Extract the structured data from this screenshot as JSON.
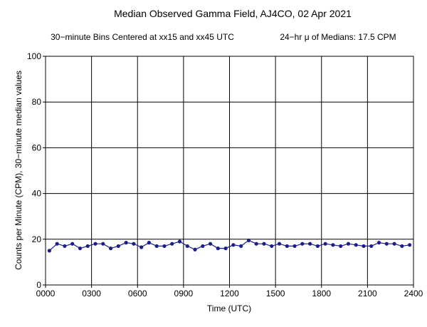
{
  "chart_data": {
    "type": "line",
    "title": "Median Observed Gamma Field, AJ4CO, 02 Apr 2021",
    "subtitle_left": "30−minute Bins Centered at xx15 and xx45 UTC",
    "subtitle_right": "24−hr μ of Medians: 17.5 CPM",
    "xlabel": "Time (UTC)",
    "ylabel": "Counts per Minute (CPM), 30−minute median values",
    "xlim": [
      0,
      24
    ],
    "ylim": [
      0,
      100
    ],
    "x_ticks": [
      0,
      3,
      6,
      9,
      12,
      15,
      18,
      21,
      24
    ],
    "x_tick_labels": [
      "0000",
      "0300",
      "0600",
      "0900",
      "1200",
      "1500",
      "1800",
      "2100",
      "2400"
    ],
    "y_ticks": [
      0,
      20,
      40,
      60,
      80,
      100
    ],
    "y_tick_labels": [
      "0",
      "20",
      "40",
      "60",
      "80",
      "100"
    ],
    "grid": true,
    "series": [
      {
        "color": "#1c1c8c",
        "x": [
          0.25,
          0.75,
          1.25,
          1.75,
          2.25,
          2.75,
          3.25,
          3.75,
          4.25,
          4.75,
          5.25,
          5.75,
          6.25,
          6.75,
          7.25,
          7.75,
          8.25,
          8.75,
          9.25,
          9.75,
          10.25,
          10.75,
          11.25,
          11.75,
          12.25,
          12.75,
          13.25,
          13.75,
          14.25,
          14.75,
          15.25,
          15.75,
          16.25,
          16.75,
          17.25,
          17.75,
          18.25,
          18.75,
          19.25,
          19.75,
          20.25,
          20.75,
          21.25,
          21.75,
          22.25,
          22.75,
          23.25,
          23.75
        ],
        "values": [
          15,
          18,
          17,
          18,
          16,
          17,
          18,
          18,
          16,
          17,
          18.5,
          18,
          16.5,
          18.5,
          17,
          17,
          18,
          19,
          17,
          15.5,
          17,
          18,
          16,
          16,
          17.5,
          17,
          19.5,
          18,
          18,
          17,
          18,
          17,
          17,
          18,
          18,
          17,
          18,
          17.5,
          17,
          18,
          17.5,
          17,
          17,
          18.5,
          18,
          18,
          17,
          17.5
        ]
      }
    ]
  }
}
